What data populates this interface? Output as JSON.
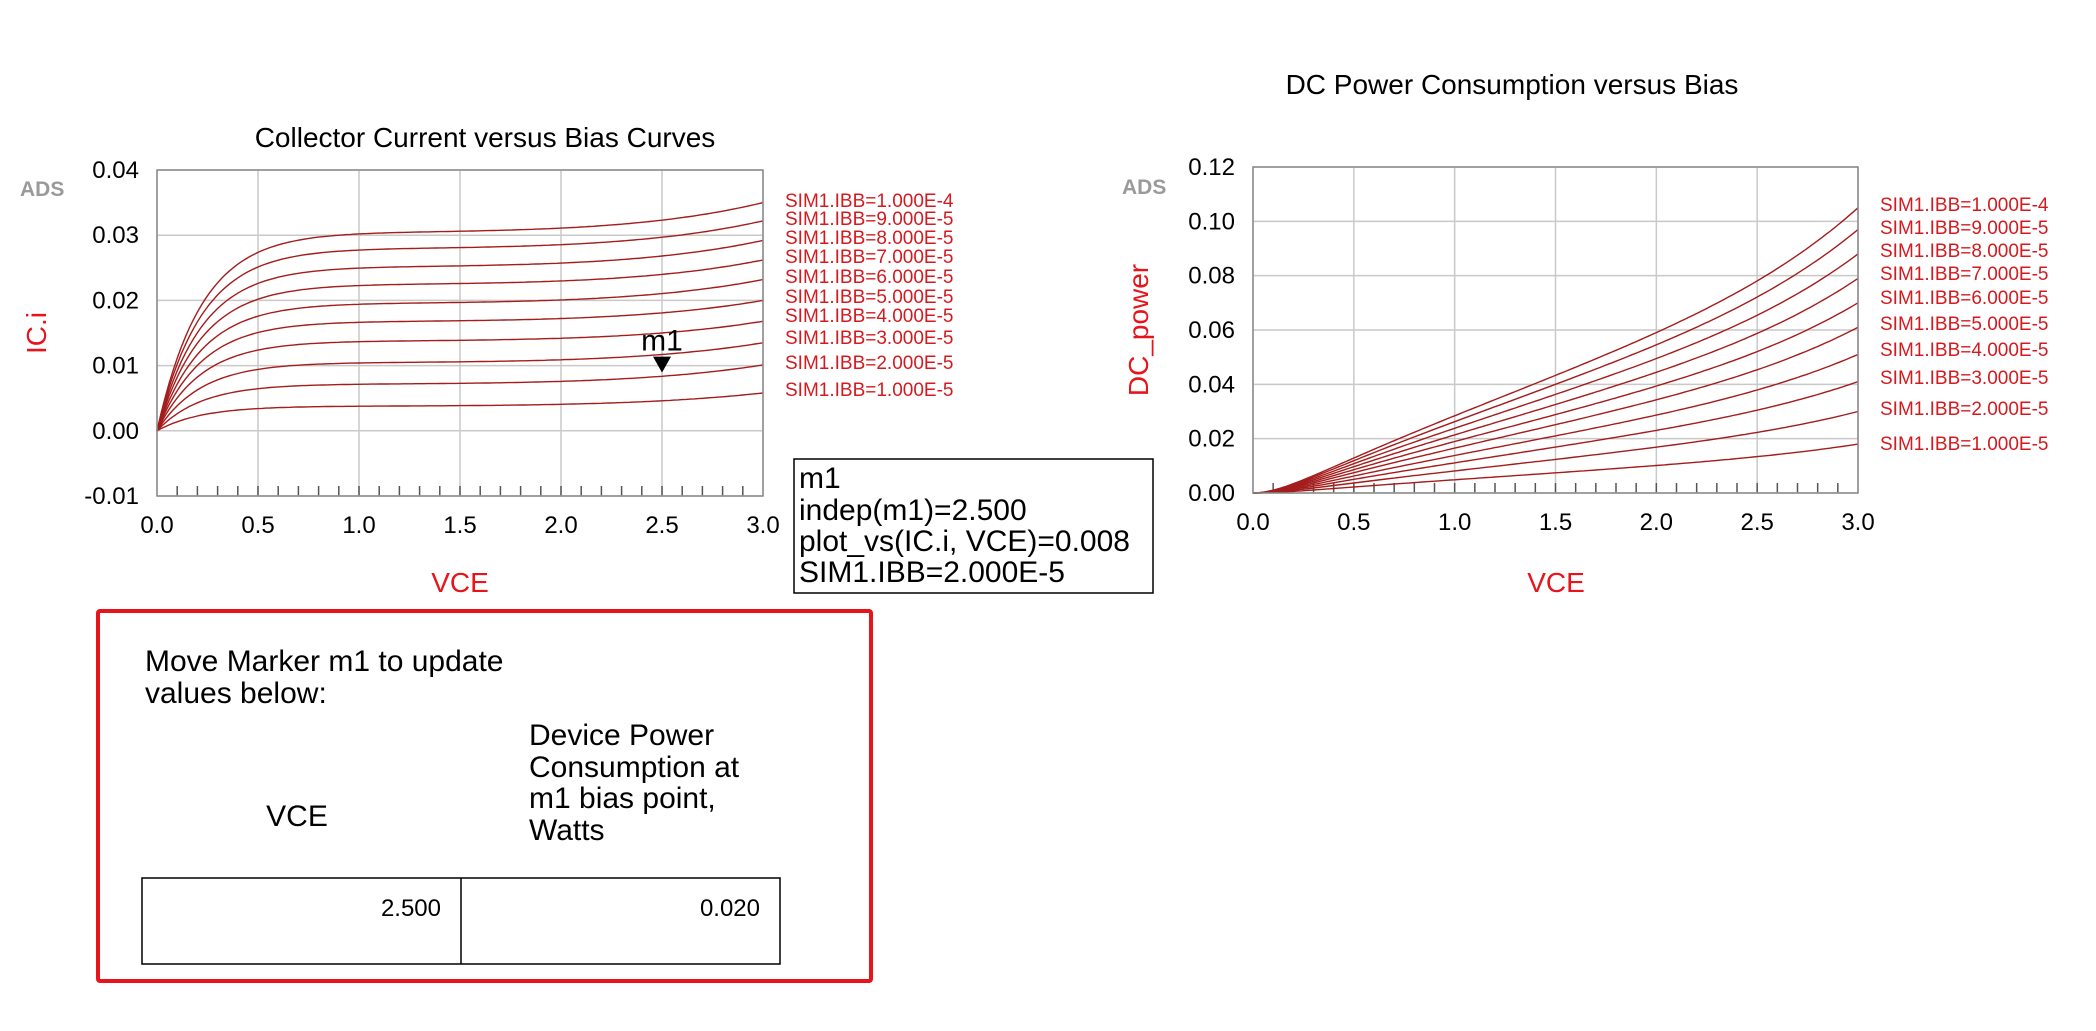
{
  "chart_data": [
    {
      "type": "line",
      "title": "Collector Current versus Bias Curves",
      "xlabel": "VCE",
      "ylabel": "IC.i",
      "xlim": [
        0.0,
        3.0
      ],
      "ylim": [
        -0.01,
        0.04
      ],
      "x_ticks": [
        "0.0",
        "0.5",
        "1.0",
        "1.5",
        "2.0",
        "2.5",
        "3.0"
      ],
      "y_ticks": [
        "-0.01",
        "0.00",
        "0.01",
        "0.02",
        "0.03",
        "0.04"
      ],
      "grid": true,
      "watermark": "ADS",
      "legend_position": "right",
      "series": [
        {
          "name": "SIM1.IBB=1.000E-4",
          "sat": 0.0305,
          "end": 0.035
        },
        {
          "name": "SIM1.IBB=9.000E-5",
          "sat": 0.028,
          "end": 0.0322
        },
        {
          "name": "SIM1.IBB=8.000E-5",
          "sat": 0.0252,
          "end": 0.0292
        },
        {
          "name": "SIM1.IBB=7.000E-5",
          "sat": 0.0225,
          "end": 0.0262
        },
        {
          "name": "SIM1.IBB=6.000E-5",
          "sat": 0.0196,
          "end": 0.0232
        },
        {
          "name": "SIM1.IBB=5.000E-5",
          "sat": 0.0168,
          "end": 0.02
        },
        {
          "name": "SIM1.IBB=4.000E-5",
          "sat": 0.0138,
          "end": 0.0168
        },
        {
          "name": "SIM1.IBB=3.000E-5",
          "sat": 0.0105,
          "end": 0.0135
        },
        {
          "name": "SIM1.IBB=2.000E-5",
          "sat": 0.0072,
          "end": 0.0101
        },
        {
          "name": "SIM1.IBB=1.000E-5",
          "sat": 0.0038,
          "end": 0.0058
        }
      ],
      "marker": {
        "name": "m1",
        "x": 2.5,
        "y": 0.008
      }
    },
    {
      "type": "line",
      "title": "DC Power Consumption versus Bias",
      "xlabel": "VCE",
      "ylabel": "DC_power",
      "xlim": [
        0.0,
        3.0
      ],
      "ylim": [
        0.0,
        0.12
      ],
      "x_ticks": [
        "0.0",
        "0.5",
        "1.0",
        "1.5",
        "2.0",
        "2.5",
        "3.0"
      ],
      "y_ticks": [
        "0.00",
        "0.02",
        "0.04",
        "0.06",
        "0.08",
        "0.10",
        "0.12"
      ],
      "grid": true,
      "watermark": "ADS",
      "legend_position": "right",
      "series": [
        {
          "name": "SIM1.IBB=1.000E-4",
          "end": 0.105
        },
        {
          "name": "SIM1.IBB=9.000E-5",
          "end": 0.097
        },
        {
          "name": "SIM1.IBB=8.000E-5",
          "end": 0.088
        },
        {
          "name": "SIM1.IBB=7.000E-5",
          "end": 0.079
        },
        {
          "name": "SIM1.IBB=6.000E-5",
          "end": 0.07
        },
        {
          "name": "SIM1.IBB=5.000E-5",
          "end": 0.061
        },
        {
          "name": "SIM1.IBB=4.000E-5",
          "end": 0.051
        },
        {
          "name": "SIM1.IBB=3.000E-5",
          "end": 0.041
        },
        {
          "name": "SIM1.IBB=2.000E-5",
          "end": 0.03
        },
        {
          "name": "SIM1.IBB=1.000E-5",
          "end": 0.018
        }
      ]
    }
  ],
  "marker_readout": {
    "lines": [
      "m1",
      "indep(m1)=2.500",
      "plot_vs(IC.i, VCE)=0.008",
      "SIM1.IBB=2.000E-5"
    ]
  },
  "panel": {
    "instruction_lines": [
      "Move Marker m1 to update",
      "values below:"
    ],
    "col1_header": "VCE",
    "col2_header_lines": [
      "Device Power",
      "Consumption at",
      "m1 bias point,",
      "Watts"
    ],
    "vce_value": "2.500",
    "power_value": "0.020",
    "border_color": "#e8141c"
  }
}
